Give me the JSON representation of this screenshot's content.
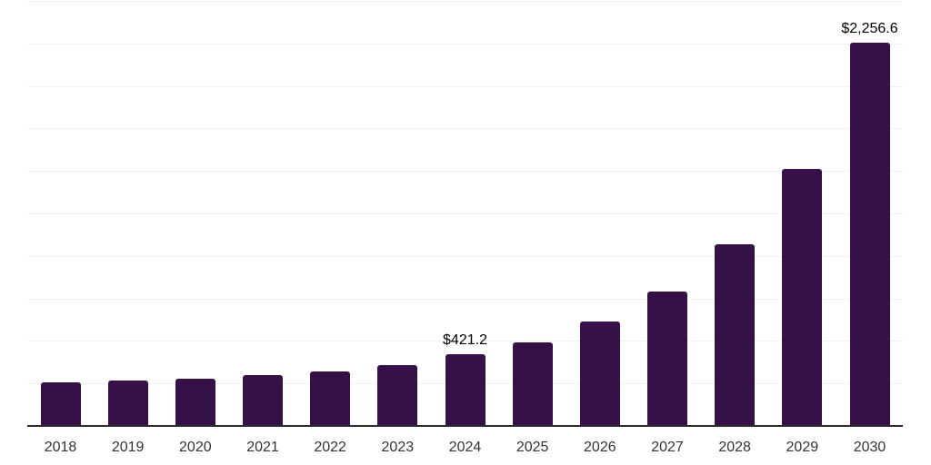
{
  "chart_data": {
    "type": "bar",
    "title": "",
    "xlabel": "",
    "ylabel": "",
    "categories": [
      "2018",
      "2019",
      "2020",
      "2021",
      "2022",
      "2023",
      "2024",
      "2025",
      "2026",
      "2027",
      "2028",
      "2029",
      "2030"
    ],
    "values": [
      258,
      268,
      280,
      297,
      322,
      356,
      421.2,
      490,
      614,
      790,
      1068,
      1512,
      2256.6
    ],
    "data_labels": [
      "",
      "",
      "",
      "",
      "",
      "",
      "$421.2",
      "",
      "",
      "",
      "",
      "",
      "$2,256.6"
    ],
    "ylim": [
      0,
      2500
    ],
    "gridline_interval": 250,
    "grid": true,
    "legend": "none"
  },
  "colors": {
    "background": "#ffffff",
    "bar": "#351147",
    "axis_line": "#2b2b2b",
    "gridline": "#f2f2f2",
    "tick_label": "#333333",
    "value_label": "#000000"
  }
}
